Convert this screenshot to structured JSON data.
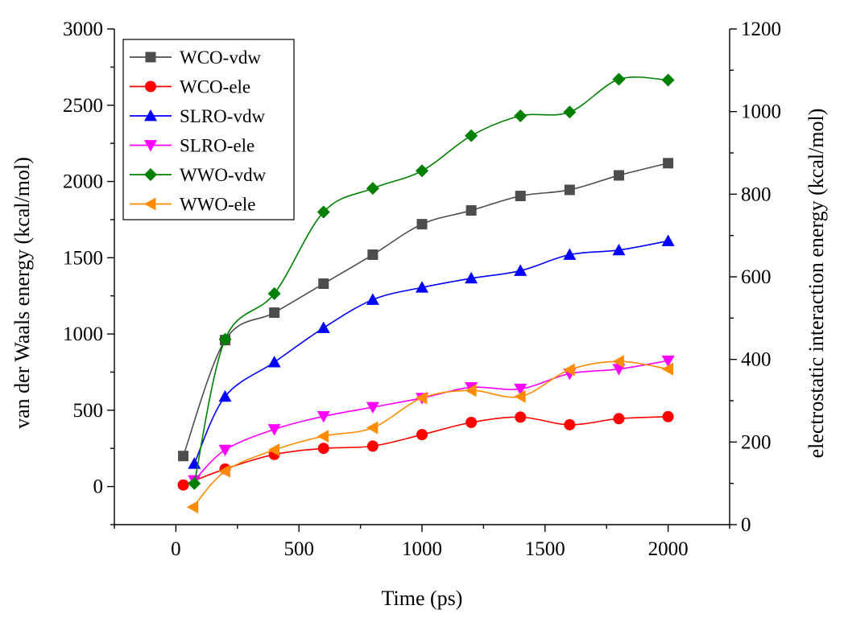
{
  "chart_data": {
    "type": "line",
    "title": "",
    "xlabel": "Time (ps)",
    "ylabel": "van der Waals energy (kcal/mol)",
    "y2label": "electrostatic interaction energy (kcal/mol)",
    "xlim": [
      -250,
      2250
    ],
    "ylim": [
      -250,
      3000
    ],
    "y2lim": [
      0,
      1200
    ],
    "xticks": [
      0,
      500,
      1000,
      1500,
      2000
    ],
    "xminor_ticks": [
      -250,
      250,
      750,
      1250,
      1750,
      2250
    ],
    "yticks": [
      0,
      500,
      1000,
      1500,
      2000,
      2500,
      3000
    ],
    "y2ticks": [
      0,
      200,
      400,
      600,
      800,
      1000,
      1200
    ],
    "legend_position": "top-left",
    "grid": false,
    "series": [
      {
        "name": "WCO-vdw",
        "axis": "left",
        "marker": "square",
        "color": "#4d4d4d",
        "x": [
          30,
          200,
          400,
          600,
          800,
          1000,
          1200,
          1400,
          1600,
          1800,
          2000
        ],
        "y": [
          200,
          960,
          1140,
          1330,
          1520,
          1720,
          1810,
          1905,
          1945,
          2040,
          2120
        ]
      },
      {
        "name": "WCO-ele",
        "axis": "left",
        "marker": "circle",
        "color": "#ff0000",
        "x": [
          30,
          200,
          400,
          600,
          800,
          1000,
          1200,
          1400,
          1600,
          1800,
          2000
        ],
        "y": [
          10,
          115,
          210,
          250,
          265,
          340,
          420,
          455,
          405,
          445,
          458
        ]
      },
      {
        "name": "SLRO-vdw",
        "axis": "left",
        "marker": "triangle-up",
        "color": "#0000ff",
        "x": [
          75,
          200,
          400,
          600,
          800,
          1000,
          1200,
          1400,
          1600,
          1800,
          2000
        ],
        "y": [
          150,
          590,
          815,
          1040,
          1225,
          1305,
          1365,
          1415,
          1520,
          1550,
          1610
        ]
      },
      {
        "name": "SLRO-ele",
        "axis": "left",
        "marker": "triangle-down",
        "color": "#ff00ff",
        "x": [
          75,
          200,
          400,
          600,
          800,
          1000,
          1200,
          1400,
          1600,
          1800,
          2000
        ],
        "y": [
          40,
          240,
          375,
          460,
          520,
          580,
          650,
          640,
          740,
          770,
          825
        ]
      },
      {
        "name": "WWO-vdw",
        "axis": "left",
        "marker": "diamond",
        "color": "#008000",
        "x": [
          75,
          200,
          400,
          600,
          800,
          1000,
          1200,
          1400,
          1600,
          1800,
          2000
        ],
        "y": [
          20,
          965,
          1265,
          1800,
          1955,
          2070,
          2300,
          2430,
          2455,
          2670,
          2665
        ]
      },
      {
        "name": "WWO-ele",
        "axis": "left",
        "marker": "triangle-left",
        "color": "#ff8c00",
        "x": [
          70,
          200,
          400,
          600,
          800,
          1000,
          1200,
          1400,
          1600,
          1800,
          2000
        ],
        "y": [
          -135,
          100,
          240,
          330,
          385,
          580,
          630,
          590,
          765,
          820,
          770
        ]
      }
    ]
  }
}
